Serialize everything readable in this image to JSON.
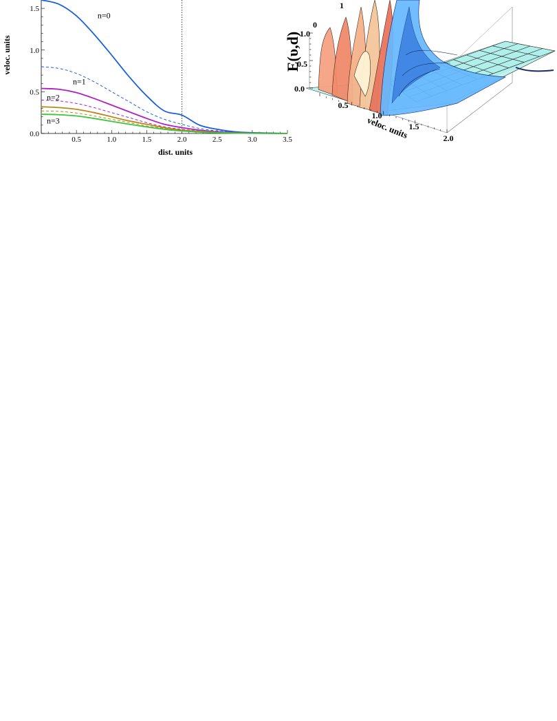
{
  "chart_data": [
    {
      "type": "line",
      "xlabel": "dist. units",
      "ylabel": "veloc. units",
      "xlim": [
        0,
        3.5
      ],
      "ylim": [
        0,
        1.6
      ],
      "xticks": [
        "0.5",
        "1.0",
        "1.5",
        "2.0",
        "2.5",
        "3.0",
        "3.5"
      ],
      "yticks": [
        "0.0",
        "0.5",
        "1.0",
        "1.5"
      ],
      "vline_x": 2.0,
      "grid": false,
      "x": [
        0,
        0.25,
        0.5,
        0.75,
        1.0,
        1.25,
        1.5,
        1.75,
        2.0,
        2.25,
        2.5,
        2.75,
        3.0,
        3.25,
        3.5
      ],
      "series": [
        {
          "name": "n=0",
          "color": "#1a5fe0",
          "style": "solid",
          "values": [
            1.6,
            1.55,
            1.41,
            1.19,
            0.94,
            0.68,
            0.45,
            0.27,
            0.22,
            0.1,
            0.05,
            0.02,
            0.01,
            0.005,
            0.0
          ]
        },
        {
          "color": "#1a5fe0",
          "style": "dashed",
          "values": [
            0.8,
            0.78,
            0.72,
            0.62,
            0.5,
            0.38,
            0.26,
            0.17,
            0.11,
            0.06,
            0.03,
            0.015,
            0.007,
            0.003,
            0.0
          ]
        },
        {
          "name": "n=1",
          "color": "#b01fc4",
          "style": "solid",
          "values": [
            0.54,
            0.53,
            0.49,
            0.42,
            0.34,
            0.26,
            0.18,
            0.11,
            0.07,
            0.04,
            0.02,
            0.01,
            0.005,
            0.002,
            0.0
          ]
        },
        {
          "color": "#b01fc4",
          "style": "dashed",
          "values": [
            0.4,
            0.39,
            0.36,
            0.31,
            0.25,
            0.19,
            0.13,
            0.08,
            0.05,
            0.03,
            0.015,
            0.007,
            0.003,
            0.001,
            0.0
          ]
        },
        {
          "name": "n=2",
          "color": "#b8891a",
          "style": "solid",
          "values": [
            0.32,
            0.31,
            0.29,
            0.25,
            0.2,
            0.15,
            0.11,
            0.07,
            0.04,
            0.025,
            0.012,
            0.006,
            0.003,
            0.001,
            0.0
          ]
        },
        {
          "color": "#b8891a",
          "style": "dashed",
          "values": [
            0.27,
            0.265,
            0.245,
            0.21,
            0.17,
            0.13,
            0.09,
            0.06,
            0.035,
            0.02,
            0.01,
            0.005,
            0.002,
            0.001,
            0.0
          ]
        },
        {
          "name": "n=3",
          "color": "#3cc43c",
          "style": "solid",
          "values": [
            0.23,
            0.225,
            0.21,
            0.18,
            0.145,
            0.11,
            0.078,
            0.05,
            0.03,
            0.017,
            0.009,
            0.004,
            0.002,
            0.001,
            0.0
          ]
        }
      ]
    },
    {
      "type": "surface",
      "xlabel": "veloc. units",
      "zlabel": "E(υ,d)",
      "xticks": [
        "0.5",
        "1.0",
        "1.5",
        "2.0"
      ],
      "zticks": [
        "0.0",
        "0.5",
        "1.0"
      ],
      "yticks": [
        "0",
        "1"
      ],
      "colors": {
        "warm": "#f08a6a",
        "cool": "#66b8ff",
        "floor": "#bff5ee",
        "grid": "#1a1a1a"
      }
    }
  ]
}
